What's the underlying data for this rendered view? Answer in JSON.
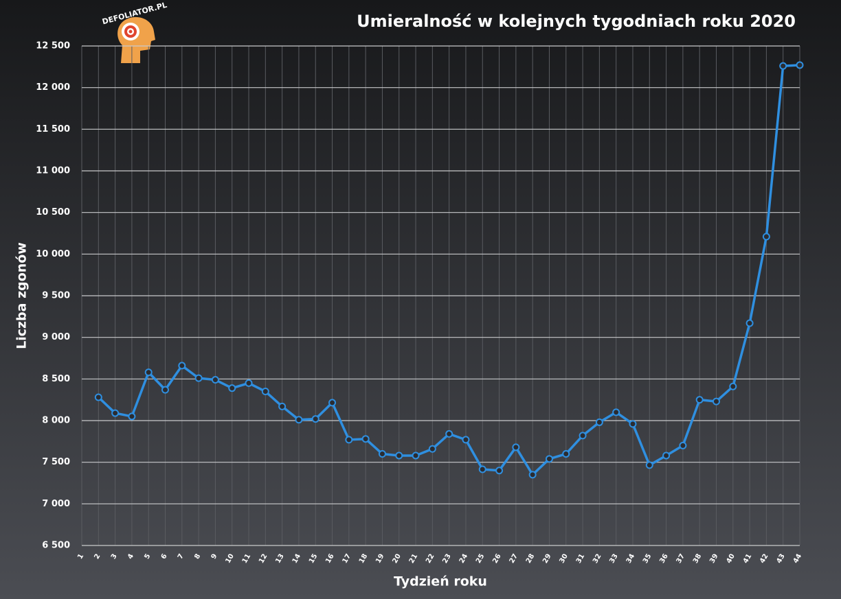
{
  "logo": "DEFOLIATOR.PL",
  "chart_data": {
    "type": "line",
    "title": "Umieralność w kolejnych tygodniach roku 2020",
    "x_label": "Tydzień roku",
    "y_label": "Liczba zgonów",
    "categories": [
      "1",
      "2",
      "3",
      "4",
      "5",
      "6",
      "7",
      "8",
      "9",
      "10",
      "11",
      "12",
      "13",
      "14",
      "15",
      "16",
      "17",
      "18",
      "19",
      "20",
      "21",
      "22",
      "23",
      "24",
      "25",
      "26",
      "27",
      "28",
      "29",
      "30",
      "31",
      "32",
      "33",
      "34",
      "35",
      "36",
      "37",
      "38",
      "39",
      "40",
      "41",
      "42",
      "43",
      "44"
    ],
    "series": [
      {
        "name": "Liczba zgonów",
        "color": "#2f8fe0",
        "values": [
          null,
          8280,
          8090,
          8050,
          8580,
          8370,
          8660,
          8510,
          8490,
          8390,
          8450,
          8350,
          8170,
          8010,
          8020,
          8215,
          7770,
          7780,
          7600,
          7580,
          7580,
          7660,
          7840,
          7770,
          7415,
          7400,
          7680,
          7350,
          7540,
          7600,
          7820,
          7980,
          8100,
          7960,
          7465,
          7580,
          7700,
          8250,
          8230,
          8410,
          9170,
          10210,
          12260,
          12270
        ]
      }
    ],
    "ylim": [
      6500,
      12500
    ],
    "yticks": [
      {
        "value": 6500,
        "label": "6 500"
      },
      {
        "value": 7000,
        "label": "7 000"
      },
      {
        "value": 7500,
        "label": "7 500"
      },
      {
        "value": 8000,
        "label": "8 000"
      },
      {
        "value": 8500,
        "label": "8 500"
      },
      {
        "value": 9000,
        "label": "9 000"
      },
      {
        "value": 9500,
        "label": "9 500"
      },
      {
        "value": 10000,
        "label": "10 000"
      },
      {
        "value": 10500,
        "label": "10 500"
      },
      {
        "value": 11000,
        "label": "11 000"
      },
      {
        "value": 11500,
        "label": "11 500"
      },
      {
        "value": 12000,
        "label": "12 000"
      },
      {
        "value": 12500,
        "label": "12 500"
      }
    ],
    "grid": true
  }
}
